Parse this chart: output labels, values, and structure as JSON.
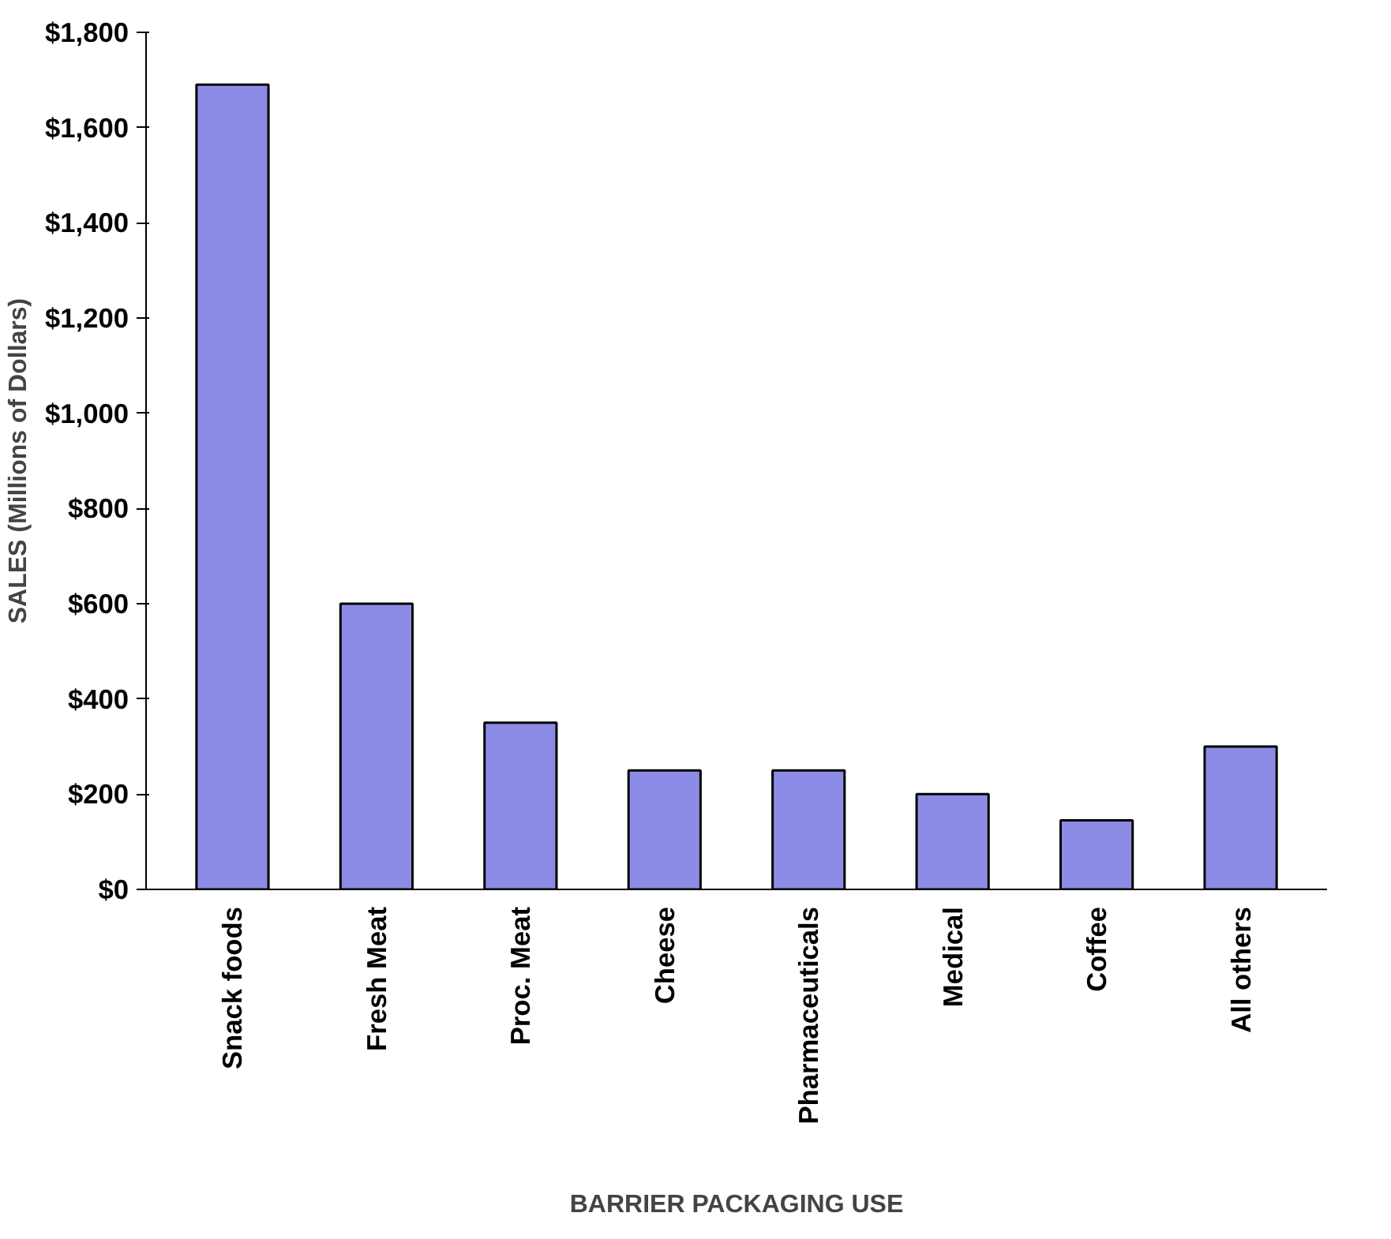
{
  "chart_data": {
    "type": "bar",
    "xlabel": "BARRIER PACKAGING USE",
    "ylabel": "SALES (Millions of Dollars)",
    "categories": [
      "Snack foods",
      "Fresh Meat",
      "Proc. Meat",
      "Cheese",
      "Pharmaceuticals",
      "Medical",
      "Coffee",
      "All others"
    ],
    "values": [
      1690,
      600,
      350,
      250,
      250,
      200,
      145,
      300
    ],
    "color": "#8c8ce6",
    "ylim": [
      0,
      1800
    ],
    "yticks": [
      {
        "value": 0,
        "label": "$0"
      },
      {
        "value": 200,
        "label": "$200"
      },
      {
        "value": 400,
        "label": "$400"
      },
      {
        "value": 600,
        "label": "$600"
      },
      {
        "value": 800,
        "label": "$800"
      },
      {
        "value": 1000,
        "label": "$1,000"
      },
      {
        "value": 1200,
        "label": "$1,200"
      },
      {
        "value": 1400,
        "label": "$1,400"
      },
      {
        "value": 1600,
        "label": "$1,600"
      },
      {
        "value": 1800,
        "label": "$1,800"
      }
    ],
    "grid": false
  }
}
